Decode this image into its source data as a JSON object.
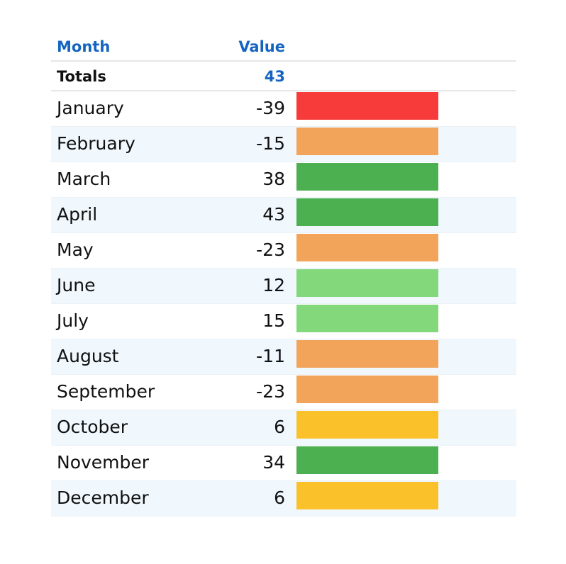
{
  "chart_data": {
    "type": "table",
    "columns": [
      "Month",
      "Value"
    ],
    "totals_label": "Totals",
    "totals_value": "43",
    "rows": [
      {
        "month": "January",
        "value": -39,
        "color": "#f73b3b"
      },
      {
        "month": "February",
        "value": -15,
        "color": "#f2a55a"
      },
      {
        "month": "March",
        "value": 38,
        "color": "#4caf50"
      },
      {
        "month": "April",
        "value": 43,
        "color": "#4caf50"
      },
      {
        "month": "May",
        "value": -23,
        "color": "#f2a55a"
      },
      {
        "month": "June",
        "value": 12,
        "color": "#82d87b"
      },
      {
        "month": "July",
        "value": 15,
        "color": "#82d87b"
      },
      {
        "month": "August",
        "value": -11,
        "color": "#f2a55a"
      },
      {
        "month": "September",
        "value": -23,
        "color": "#f2a55a"
      },
      {
        "month": "October",
        "value": 6,
        "color": "#fbc12a"
      },
      {
        "month": "November",
        "value": 34,
        "color": "#4caf50"
      },
      {
        "month": "December",
        "value": 6,
        "color": "#fbc12a"
      }
    ]
  },
  "colors": {
    "header_text": "#1565c0",
    "alt_row_bg": "#f0f7fd"
  }
}
